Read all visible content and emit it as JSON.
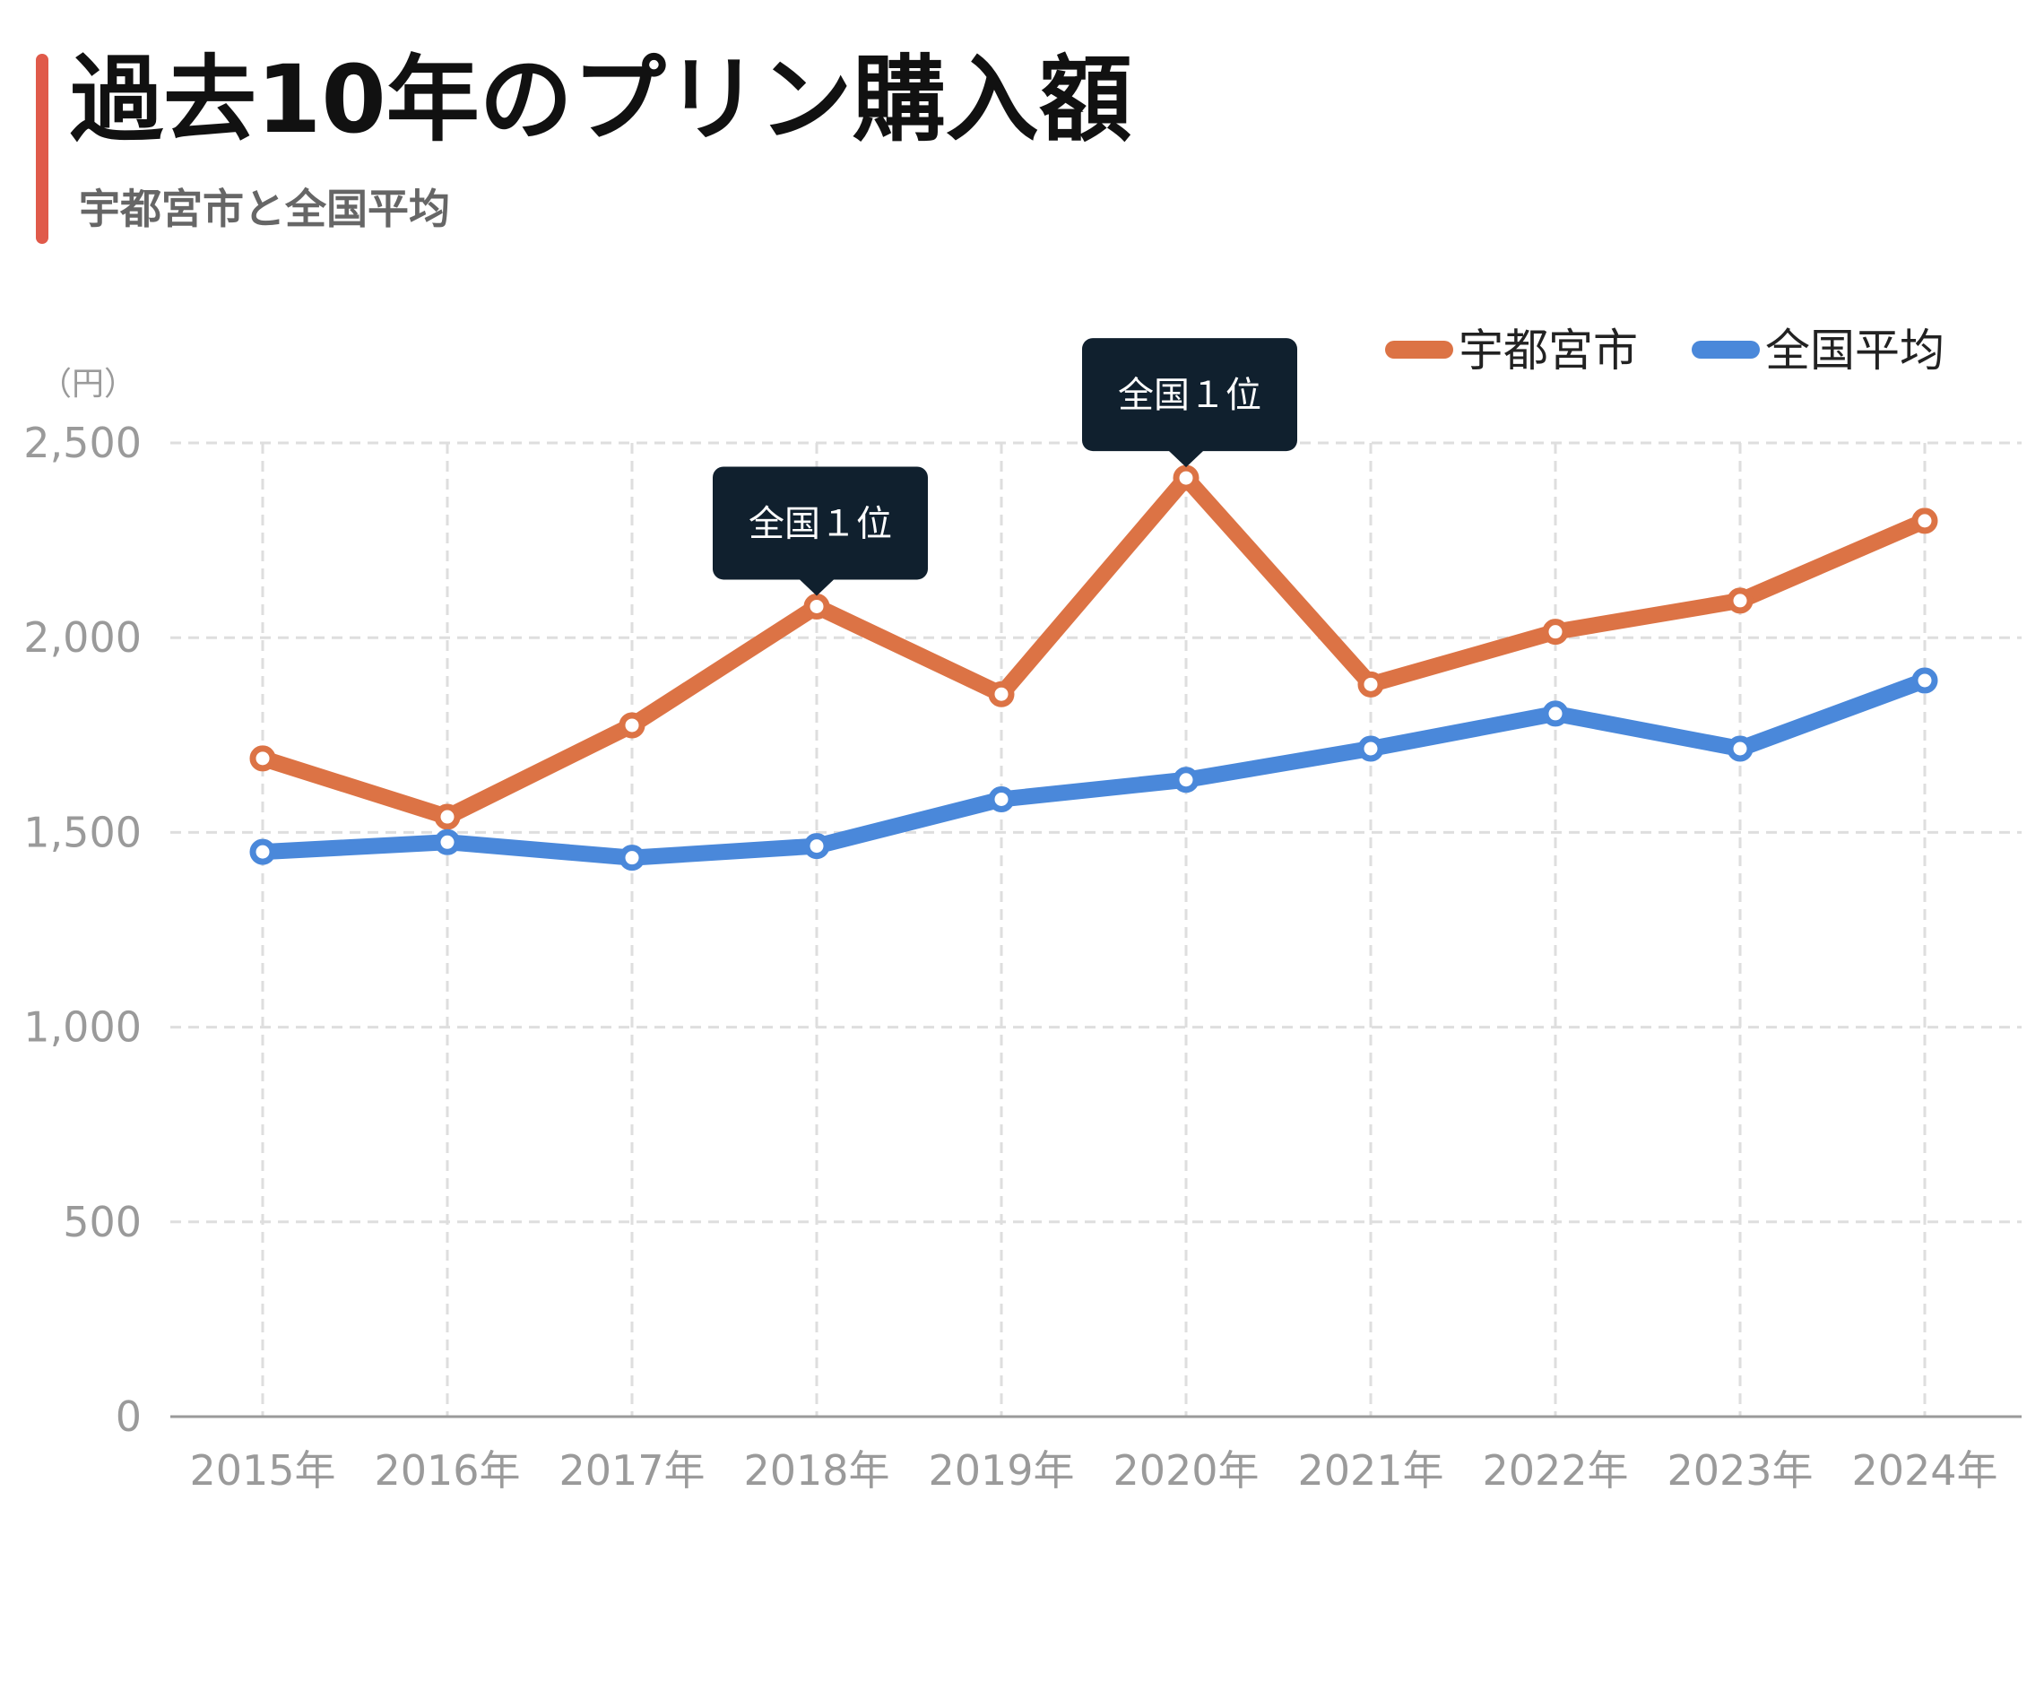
{
  "title": "過去10年のプリン購入額",
  "subtitle": "宇都宮市と全国平均",
  "chart_data": {
    "type": "line",
    "unit": "（円）",
    "x": [
      "2015年",
      "2016年",
      "2017年",
      "2018年",
      "2019年",
      "2020年",
      "2021年",
      "2022年",
      "2023年",
      "2024年"
    ],
    "ylim": [
      0,
      2500
    ],
    "yticks": [
      0,
      500,
      1000,
      1500,
      2000,
      2500
    ],
    "ytick_labels": [
      "0",
      "500",
      "1,000",
      "1,500",
      "2,000",
      "2,500"
    ],
    "grid": true,
    "legend_position": "top-right",
    "series": [
      {
        "name": "宇都宮市",
        "color": "#dc7345",
        "values": [
          1690,
          1540,
          1775,
          2080,
          1855,
          2410,
          1880,
          2015,
          2095,
          2300
        ]
      },
      {
        "name": "全国平均",
        "color": "#4a88da",
        "values": [
          1450,
          1475,
          1435,
          1465,
          1585,
          1635,
          1715,
          1805,
          1715,
          1890
        ]
      }
    ],
    "annotations": [
      {
        "text": "全国１位",
        "series": 0,
        "x": "2018年"
      },
      {
        "text": "全国１位",
        "series": 0,
        "x": "2020年"
      }
    ]
  }
}
